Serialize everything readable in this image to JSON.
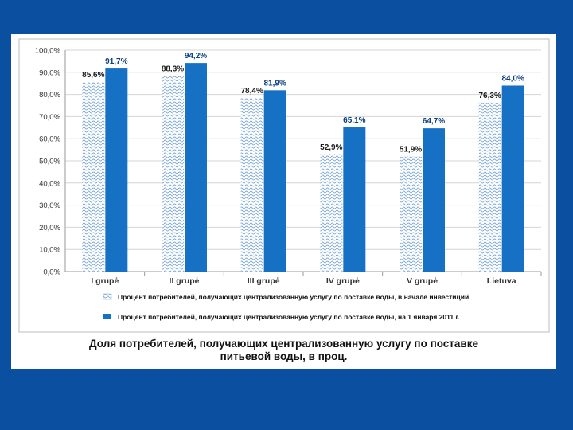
{
  "caption": {
    "line1": "Доля потребителей, получающих централизованную услугу по поставке",
    "line2": "питьевой воды, в проц."
  },
  "colors": {
    "background": "#0b4fa0",
    "series_start": "#c9dcef",
    "series_end": "#1670c4"
  },
  "chart_data": {
    "type": "bar",
    "categories": [
      "I grupė",
      "II grupė",
      "III grupė",
      "IV grupė",
      "V grupė",
      "Lietuva"
    ],
    "series": [
      {
        "name": "Процент потребителей, получающих централизованную услугу по поставке воды, в начале инвестиций",
        "values": [
          85.6,
          88.3,
          78.4,
          52.9,
          51.9,
          76.3
        ],
        "labels": [
          "85,6%",
          "88,3%",
          "78,4%",
          "52,9%",
          "51,9%",
          "76,3%"
        ],
        "color": "#c9dcef",
        "pattern": "wave-hatch"
      },
      {
        "name": "Процент потребителей, получающих централизованную услугу по поставке воды, на 1 января 2011 г.",
        "values": [
          91.7,
          94.2,
          81.9,
          65.1,
          64.7,
          84.0
        ],
        "labels": [
          "91,7%",
          "94,2%",
          "81,9%",
          "65,1%",
          "64,7%",
          "84,0%"
        ],
        "color": "#1670c4",
        "pattern": "solid"
      }
    ],
    "ylim": [
      0,
      100
    ],
    "yticks": [
      0,
      10,
      20,
      30,
      40,
      50,
      60,
      70,
      80,
      90,
      100
    ],
    "ytick_labels": [
      "0,0%",
      "10,0%",
      "20,0%",
      "30,0%",
      "40,0%",
      "50,0%",
      "60,0%",
      "70,0%",
      "80,0%",
      "90,0%",
      "100,0%"
    ],
    "grid": true,
    "legend_position": "bottom"
  }
}
